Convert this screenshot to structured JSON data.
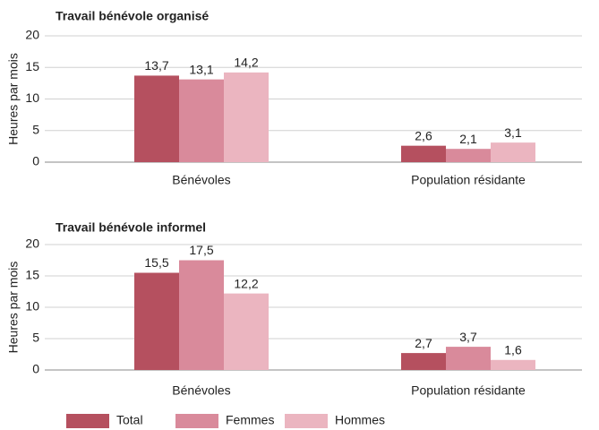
{
  "chart_data": [
    {
      "type": "bar",
      "title": "Travail bénévole organisé",
      "y_label": "Heures par mois",
      "categories": [
        "Bénévoles",
        "Population résidante"
      ],
      "series": [
        {
          "name": "Total",
          "color": "#b5505f",
          "values": [
            13.7,
            2.6
          ],
          "value_labels": [
            "13,7",
            "2,6"
          ]
        },
        {
          "name": "Femmes",
          "color": "#d98a9b",
          "values": [
            13.1,
            2.1
          ],
          "value_labels": [
            "13,1",
            "2,1"
          ]
        },
        {
          "name": "Hommes",
          "color": "#ebb5c0",
          "values": [
            14.2,
            3.1
          ],
          "value_labels": [
            "14,2",
            "3,1"
          ]
        }
      ],
      "ylim": [
        0,
        20
      ],
      "yticks": [
        0,
        5,
        10,
        15,
        20
      ],
      "grid": true,
      "legend": "bottom"
    },
    {
      "type": "bar",
      "title": "Travail bénévole informel",
      "y_label": "Heures par mois",
      "categories": [
        "Bénévoles",
        "Population résidante"
      ],
      "series": [
        {
          "color": "#b5505f",
          "values": [
            15.5,
            2.7
          ],
          "value_labels": [
            "15,5",
            "2,7"
          ]
        },
        {
          "color": "#d98a9b",
          "values": [
            17.5,
            3.7
          ],
          "value_labels": [
            "17,5",
            "3,7"
          ]
        },
        {
          "color": "#ebb5c0",
          "values": [
            12.2,
            1.6
          ],
          "value_labels": [
            "12,2",
            "1,6"
          ]
        }
      ],
      "ylim": [
        0,
        20
      ],
      "yticks": [
        0,
        5,
        10,
        15,
        20
      ],
      "grid": true
    }
  ]
}
